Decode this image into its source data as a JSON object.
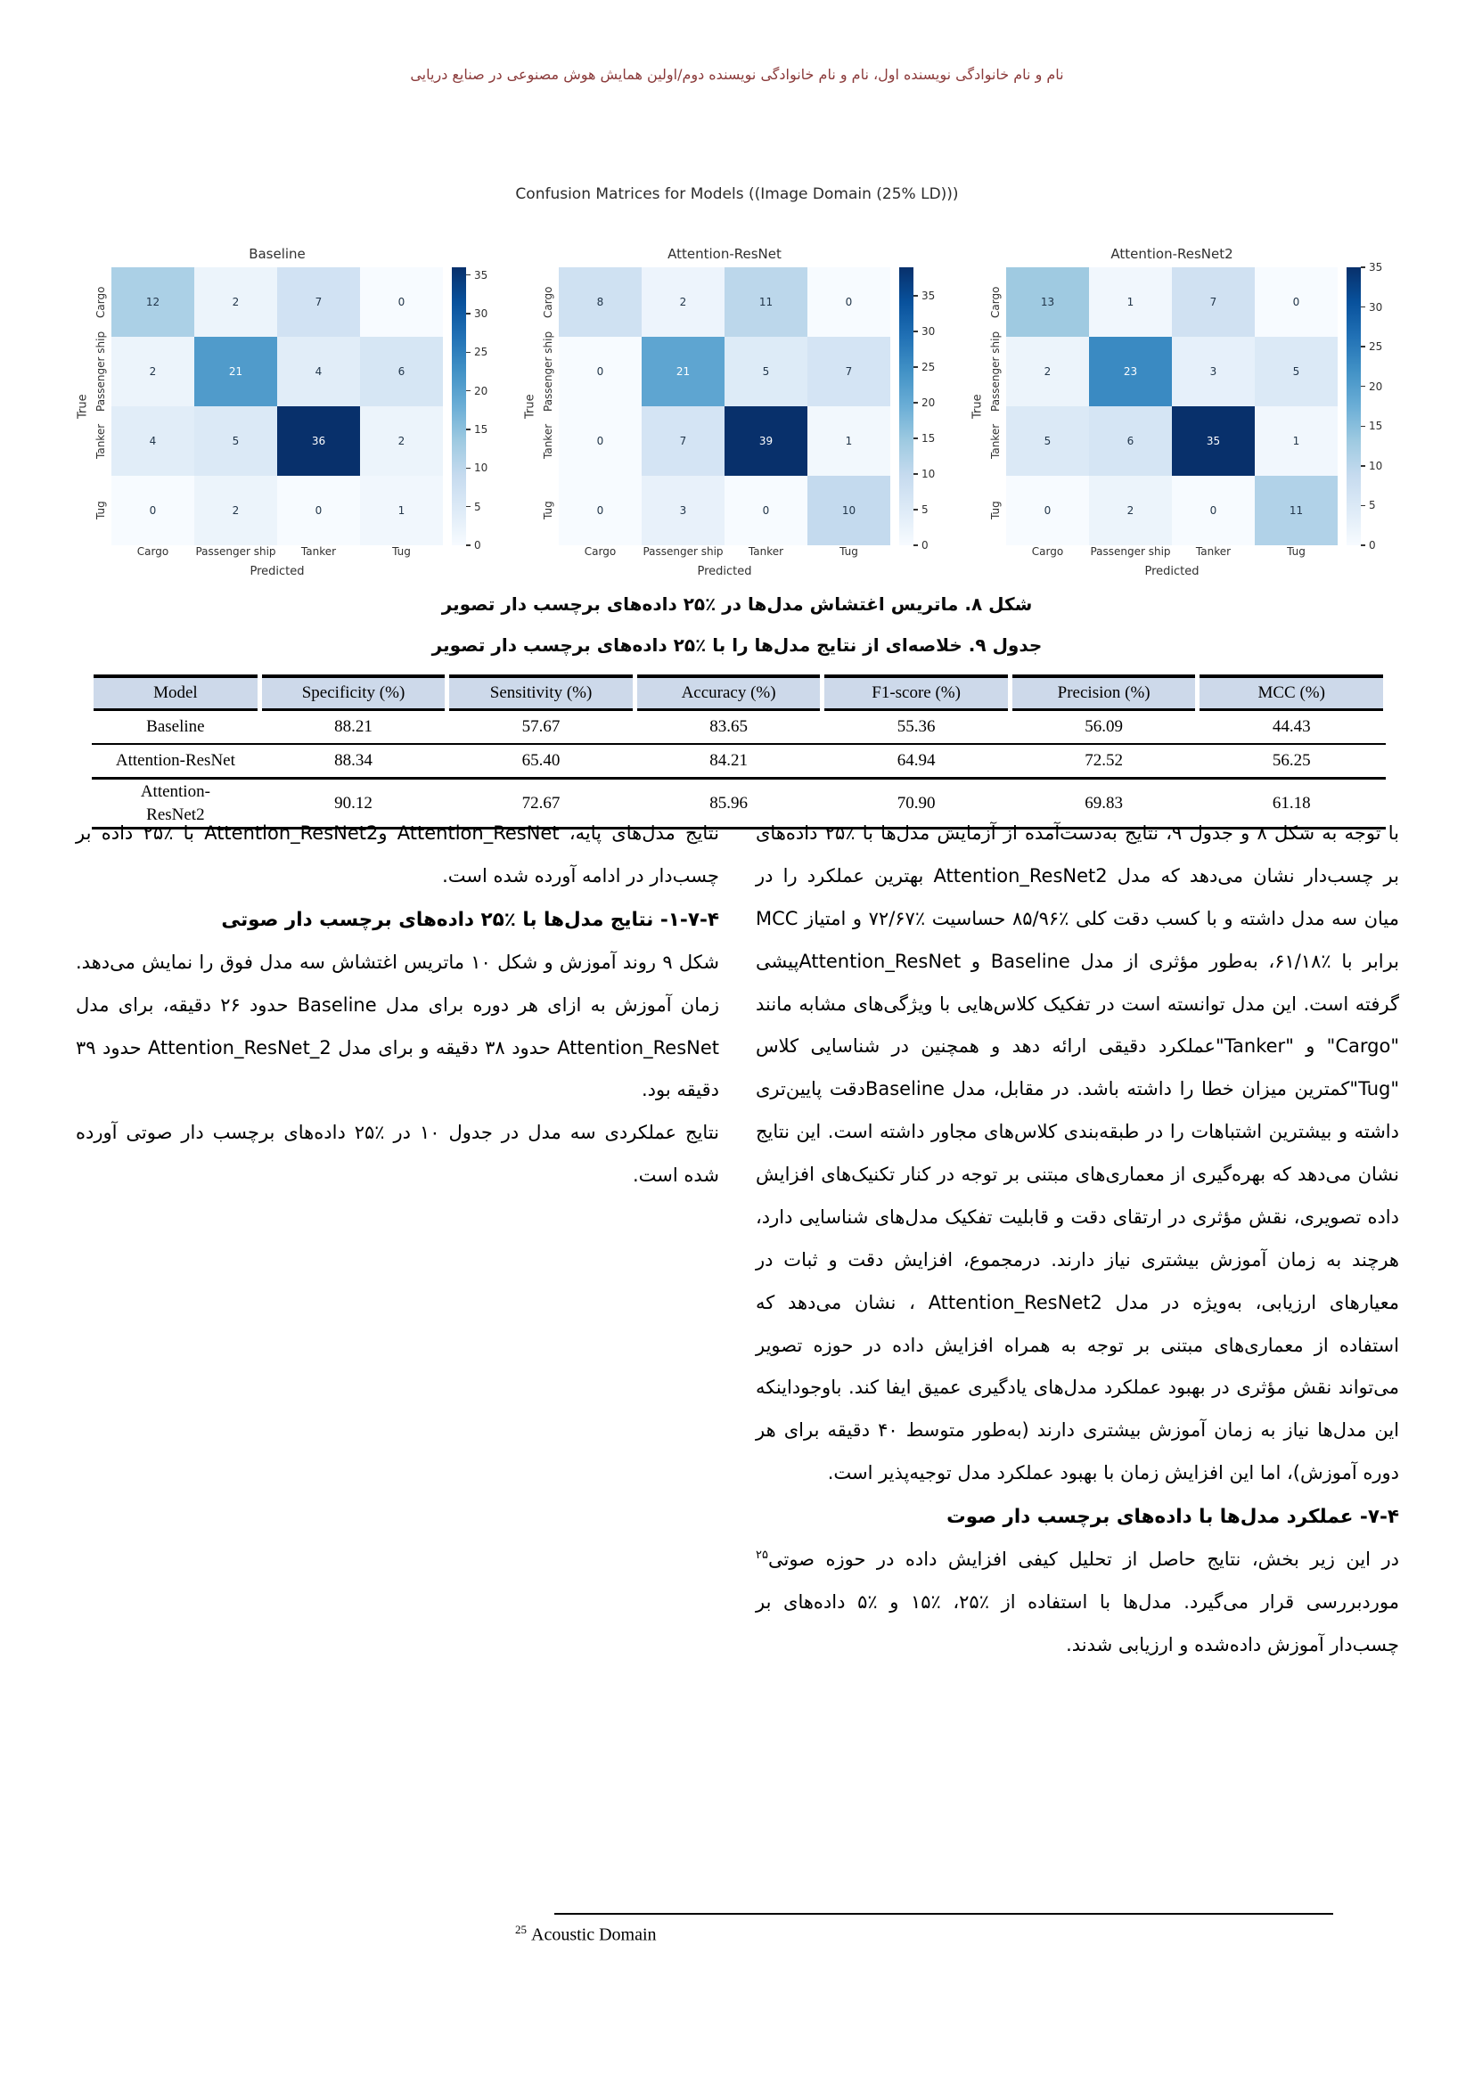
{
  "colors": {
    "header_text": "#8b3b3b",
    "table_header_bg": "#cdd9ea",
    "heatmap_colormap_low": "#f7fbff",
    "heatmap_colormap_high": "#08306b"
  },
  "page": {
    "header": "نام و نام خانوادگی نویسنده اول، نام و نام خانوادگی نویسنده دوم/اولین همایش هوش مصنوعی در صنایع دریایی"
  },
  "figure": {
    "title": "Confusion Matrices for Models ((Image Domain (25% LD)))"
  },
  "chart_data": [
    {
      "type": "heatmap",
      "title": "Baseline",
      "x_categories": [
        "Cargo",
        "Passenger ship",
        "Tanker",
        "Tug"
      ],
      "y_categories": [
        "Cargo",
        "Passenger ship",
        "Tanker",
        "Tug"
      ],
      "xlabel": "Predicted",
      "ylabel": "True",
      "values": [
        [
          12,
          2,
          7,
          0
        ],
        [
          2,
          21,
          4,
          6
        ],
        [
          4,
          5,
          36,
          2
        ],
        [
          0,
          2,
          0,
          1
        ]
      ],
      "colormap": "Blues",
      "colorbar_ticks": [
        0,
        5,
        10,
        15,
        20,
        25,
        30,
        35
      ]
    },
    {
      "type": "heatmap",
      "title": "Attention-ResNet",
      "x_categories": [
        "Cargo",
        "Passenger ship",
        "Tanker",
        "Tug"
      ],
      "y_categories": [
        "Cargo",
        "Passenger ship",
        "Tanker",
        "Tug"
      ],
      "xlabel": "Predicted",
      "ylabel": "True",
      "values": [
        [
          8,
          2,
          11,
          0
        ],
        [
          0,
          21,
          5,
          7
        ],
        [
          0,
          7,
          39,
          1
        ],
        [
          0,
          3,
          0,
          10
        ]
      ],
      "colormap": "Blues",
      "colorbar_ticks": [
        0,
        5,
        10,
        15,
        20,
        25,
        30,
        35
      ]
    },
    {
      "type": "heatmap",
      "title": "Attention-ResNet2",
      "x_categories": [
        "Cargo",
        "Passenger ship",
        "Tanker",
        "Tug"
      ],
      "y_categories": [
        "Cargo",
        "Passenger ship",
        "Tanker",
        "Tug"
      ],
      "xlabel": "Predicted",
      "ylabel": "True",
      "values": [
        [
          13,
          1,
          7,
          0
        ],
        [
          2,
          23,
          3,
          5
        ],
        [
          5,
          6,
          35,
          1
        ],
        [
          0,
          2,
          0,
          11
        ]
      ],
      "colormap": "Blues",
      "colorbar_ticks": [
        0,
        5,
        10,
        15,
        20,
        25,
        30,
        35
      ]
    }
  ],
  "captions": {
    "figure": "شکل ۸. ماتریس اغتشاش مدل‌ها در ٪۲۵ داده‌های برچسب دار تصویر",
    "table": "جدول ۹. خلاصه‌ای از نتایج مدل‌ها را با ٪۲۵ داده‌های برچسب دار تصویر"
  },
  "table": {
    "headers": [
      "Model",
      "Specificity (%)",
      "Sensitivity (%)",
      "Accuracy (%)",
      "F1-score (%)",
      "Precision (%)",
      "MCC (%)"
    ],
    "rows": [
      {
        "model": "Baseline",
        "values": [
          "88.21",
          "57.67",
          "83.65",
          "55.36",
          "56.09",
          "44.43"
        ]
      },
      {
        "model": "Attention-ResNet",
        "values": [
          "88.34",
          "65.40",
          "84.21",
          "64.94",
          "72.52",
          "56.25"
        ]
      },
      {
        "model": "Attention-\nResNet2",
        "values": [
          "90.12",
          "72.67",
          "85.96",
          "70.90",
          "69.83",
          "61.18"
        ]
      }
    ]
  },
  "body": {
    "right": [
      {
        "type": "p",
        "text": "با توجه به شکل ۸ و جدول ۹، نتایج به‌دست‌آمده از آزمایش مدل‌ها با ٪۲۵ داده‌های بر چسب‌دار نشان می‌دهد که مدل Attention_ResNet2 بهترین عملکرد را در میان سه مدل داشته و با کسب دقت کلی ٪۸۵/۹۶ حساسیت ٪۷۲/۶۷ و امتیاز MCC برابر با ٪۶۱/۱۸، به‌طور مؤثری از مدل Baseline و Attention_ResNetپیشی گرفته است. این مدل توانسته است در تفکیک کلاس‌هایی با ویژگی‌های مشابه مانند \"Cargo\" و \"Tanker\"عملکرد دقیقی ارائه دهد و همچنین در شناسایی کلاس \"Tug\"کمترین میزان خطا را داشته باشد. در مقابل، مدل Baselineدقت پایین‌تری داشته و بیشترین اشتباهات را در طبقه‌بندی کلاس‌های مجاور داشته است. این نتایج نشان می‌دهد که بهره‌گیری از معماری‌های مبتنی بر توجه در کنار تکنیک‌های افزایش داده تصویری، نقش مؤثری در ارتقای دقت و قابلیت تفکیک مدل‌های شناسایی دارد، هرچند به زمان آموزش بیشتری نیاز دارند. درمجموع، افزایش دقت و ثبات در معیارهای ارزیابی، به‌ویژه در مدل Attention_ResNet2 ، نشان می‌دهد که استفاده از معماری‌های مبتنی بر توجه به همراه افزایش داده در حوزه تصویر می‌تواند نقش مؤثری در بهبود عملکرد مدل‌های یادگیری عمیق ایفا کند. باوجوداینکه این مدل‌ها نیاز به زمان آموزش بیشتری دارند (به‌طور متوسط ۴۰ دقیقه برای هر دوره آموزش)، اما این افزایش زمان با بهبود عملکرد مدل توجیه‌پذیر است."
      },
      {
        "type": "h",
        "num": "۴-۷-",
        "text": "  عملکرد مدل‌ها با داده‌های برچسب دار صوت"
      },
      {
        "type": "p",
        "text": "در این زیر بخش، نتایج حاصل از تحلیل کیفی افزایش داده در حوزه صوتی",
        "sup": "۲۵",
        "text2": " موردبررسی قرار می‌گیرد. مدل‌ها با استفاده از ٪۲۵، ٪۱۵ و ٪۵ داده‌های بر چسب‌دار آموزش داده‌شده و ارزیابی شدند."
      }
    ],
    "left": [
      {
        "type": "p",
        "text": "نتایج مدل‌های پایه، Attention_ResNet وAttention_ResNet2 با ٪۲۵ داده بر چسب‌دار در ادامه آورده شده است."
      },
      {
        "type": "h",
        "num": "۴-۷-۱-",
        "text": " نتایج مدل‌ها با ٪۲۵ داده‌های برچسب دار صوتی"
      },
      {
        "type": "p",
        "text": "شکل ۹ روند آموزش و شکل ۱۰ ماتریس اغتشاش سه مدل فوق را نمایش می‌دهد. زمان آموزش به ازای هر دوره برای مدل Baseline حدود ۲۶ دقیقه، برای مدل Attention_ResNet حدود ۳۸ دقیقه و برای مدل Attention_ResNet_2 حدود ۳۹ دقیقه بود."
      },
      {
        "type": "p",
        "text": "نتایج عملکردی سه مدل در جدول ۱۰ در ٪۲۵ داده‌های برچسب دار صوتی آورده شده است."
      }
    ]
  },
  "footnote": {
    "marker": "25",
    "text": "Acoustic Domain"
  }
}
